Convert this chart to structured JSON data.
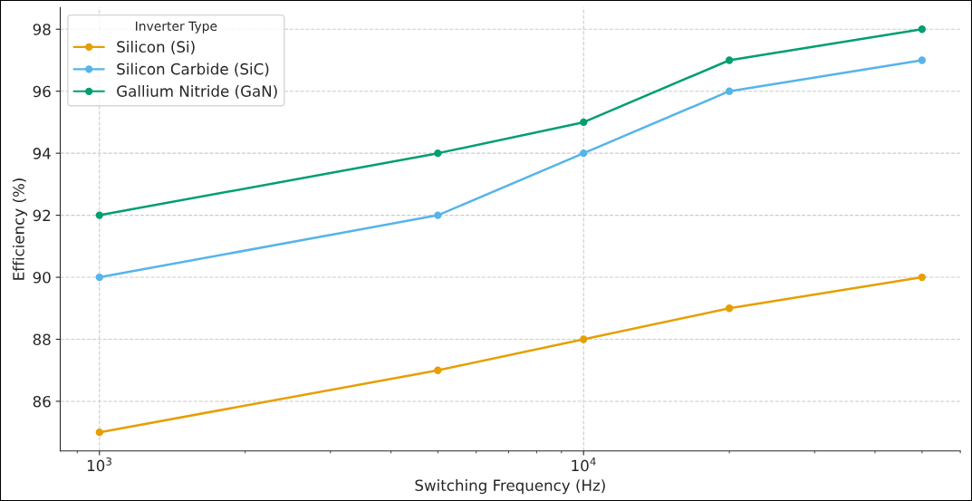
{
  "chart_data": {
    "type": "line",
    "xlabel": "Switching Frequency (Hz)",
    "ylabel": "Efficiency (%)",
    "legend_title": "Inverter Type",
    "x": [
      1000,
      5000,
      10000,
      20000,
      50000
    ],
    "series": [
      {
        "name": "Silicon (Si)",
        "color": "#e69f00",
        "values": [
          85,
          87,
          88,
          89,
          90
        ]
      },
      {
        "name": "Silicon Carbide (SiC)",
        "color": "#56b4e9",
        "values": [
          90,
          92,
          94,
          96,
          97
        ]
      },
      {
        "name": "Gallium Nitride (GaN)",
        "color": "#009e73",
        "values": [
          92,
          94,
          95,
          97,
          98
        ]
      }
    ],
    "log": "x",
    "xlim": [
      830,
      60000
    ],
    "ylim": [
      84.4,
      98.7
    ],
    "xticks": [
      {
        "value": 1000,
        "label": "10$^{3}$"
      },
      {
        "value": 10000,
        "label": "10$^{4}$"
      }
    ],
    "yticks": [
      86,
      88,
      90,
      92,
      94,
      96,
      98
    ],
    "grid": true,
    "legend": "top left",
    "marker": "circle",
    "line_style": "solid"
  }
}
